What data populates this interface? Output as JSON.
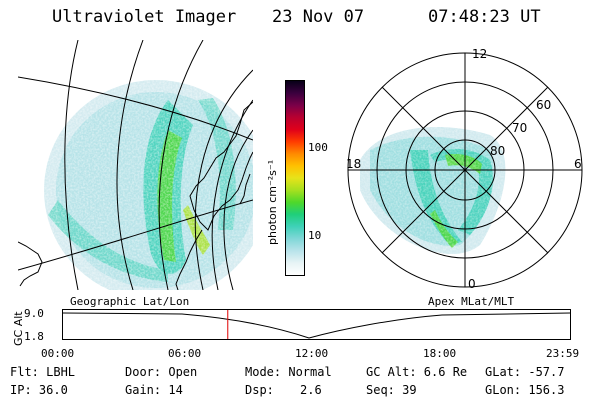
{
  "header": {
    "title": "Ultraviolet Imager",
    "date": "23 Nov 07",
    "time": "07:48:23 UT"
  },
  "colorbar": {
    "unit_label": "photon cm⁻²s⁻¹",
    "tick_100": "100",
    "tick_10": "10",
    "colors": [
      "#ffffff",
      "#e6f3f5",
      "#b8e3ea",
      "#7fd7d7",
      "#3fd1b8",
      "#1fcf7a",
      "#4fd82a",
      "#a7e01f",
      "#e7e31a",
      "#ffc000",
      "#ff8a00",
      "#ff3b00",
      "#e0001a",
      "#b80030",
      "#7a0048",
      "#3a003e",
      "#080018"
    ]
  },
  "panels": {
    "left_label": "Geographic Lat/Lon",
    "right_label": "Apex MLat/MLT",
    "polar": {
      "mlt_labels": [
        "12",
        "18",
        "6",
        "0"
      ],
      "lat_labels": [
        "60",
        "70",
        "80"
      ]
    }
  },
  "timeline": {
    "ylabel": "GC Alt",
    "y_ticks": [
      "9.0",
      "1.8"
    ],
    "x_ticks": [
      "00:00",
      "06:00",
      "12:00",
      "18:00",
      "23:59"
    ],
    "current_time_frac": 0.325
  },
  "footer": {
    "filt": "Flt: LBHL",
    "door": "Door: Open",
    "mode": "Mode: Normal",
    "gc_alt": "GC Alt: 6.6 Re",
    "glat": "GLat: -57.7",
    "ip": "IP: 36.0",
    "gain": "Gain: 14",
    "dsp_label": "Dsp:",
    "dsp_value": "2.6",
    "seq": "Seq: 39",
    "glon": "GLon: 156.3"
  }
}
